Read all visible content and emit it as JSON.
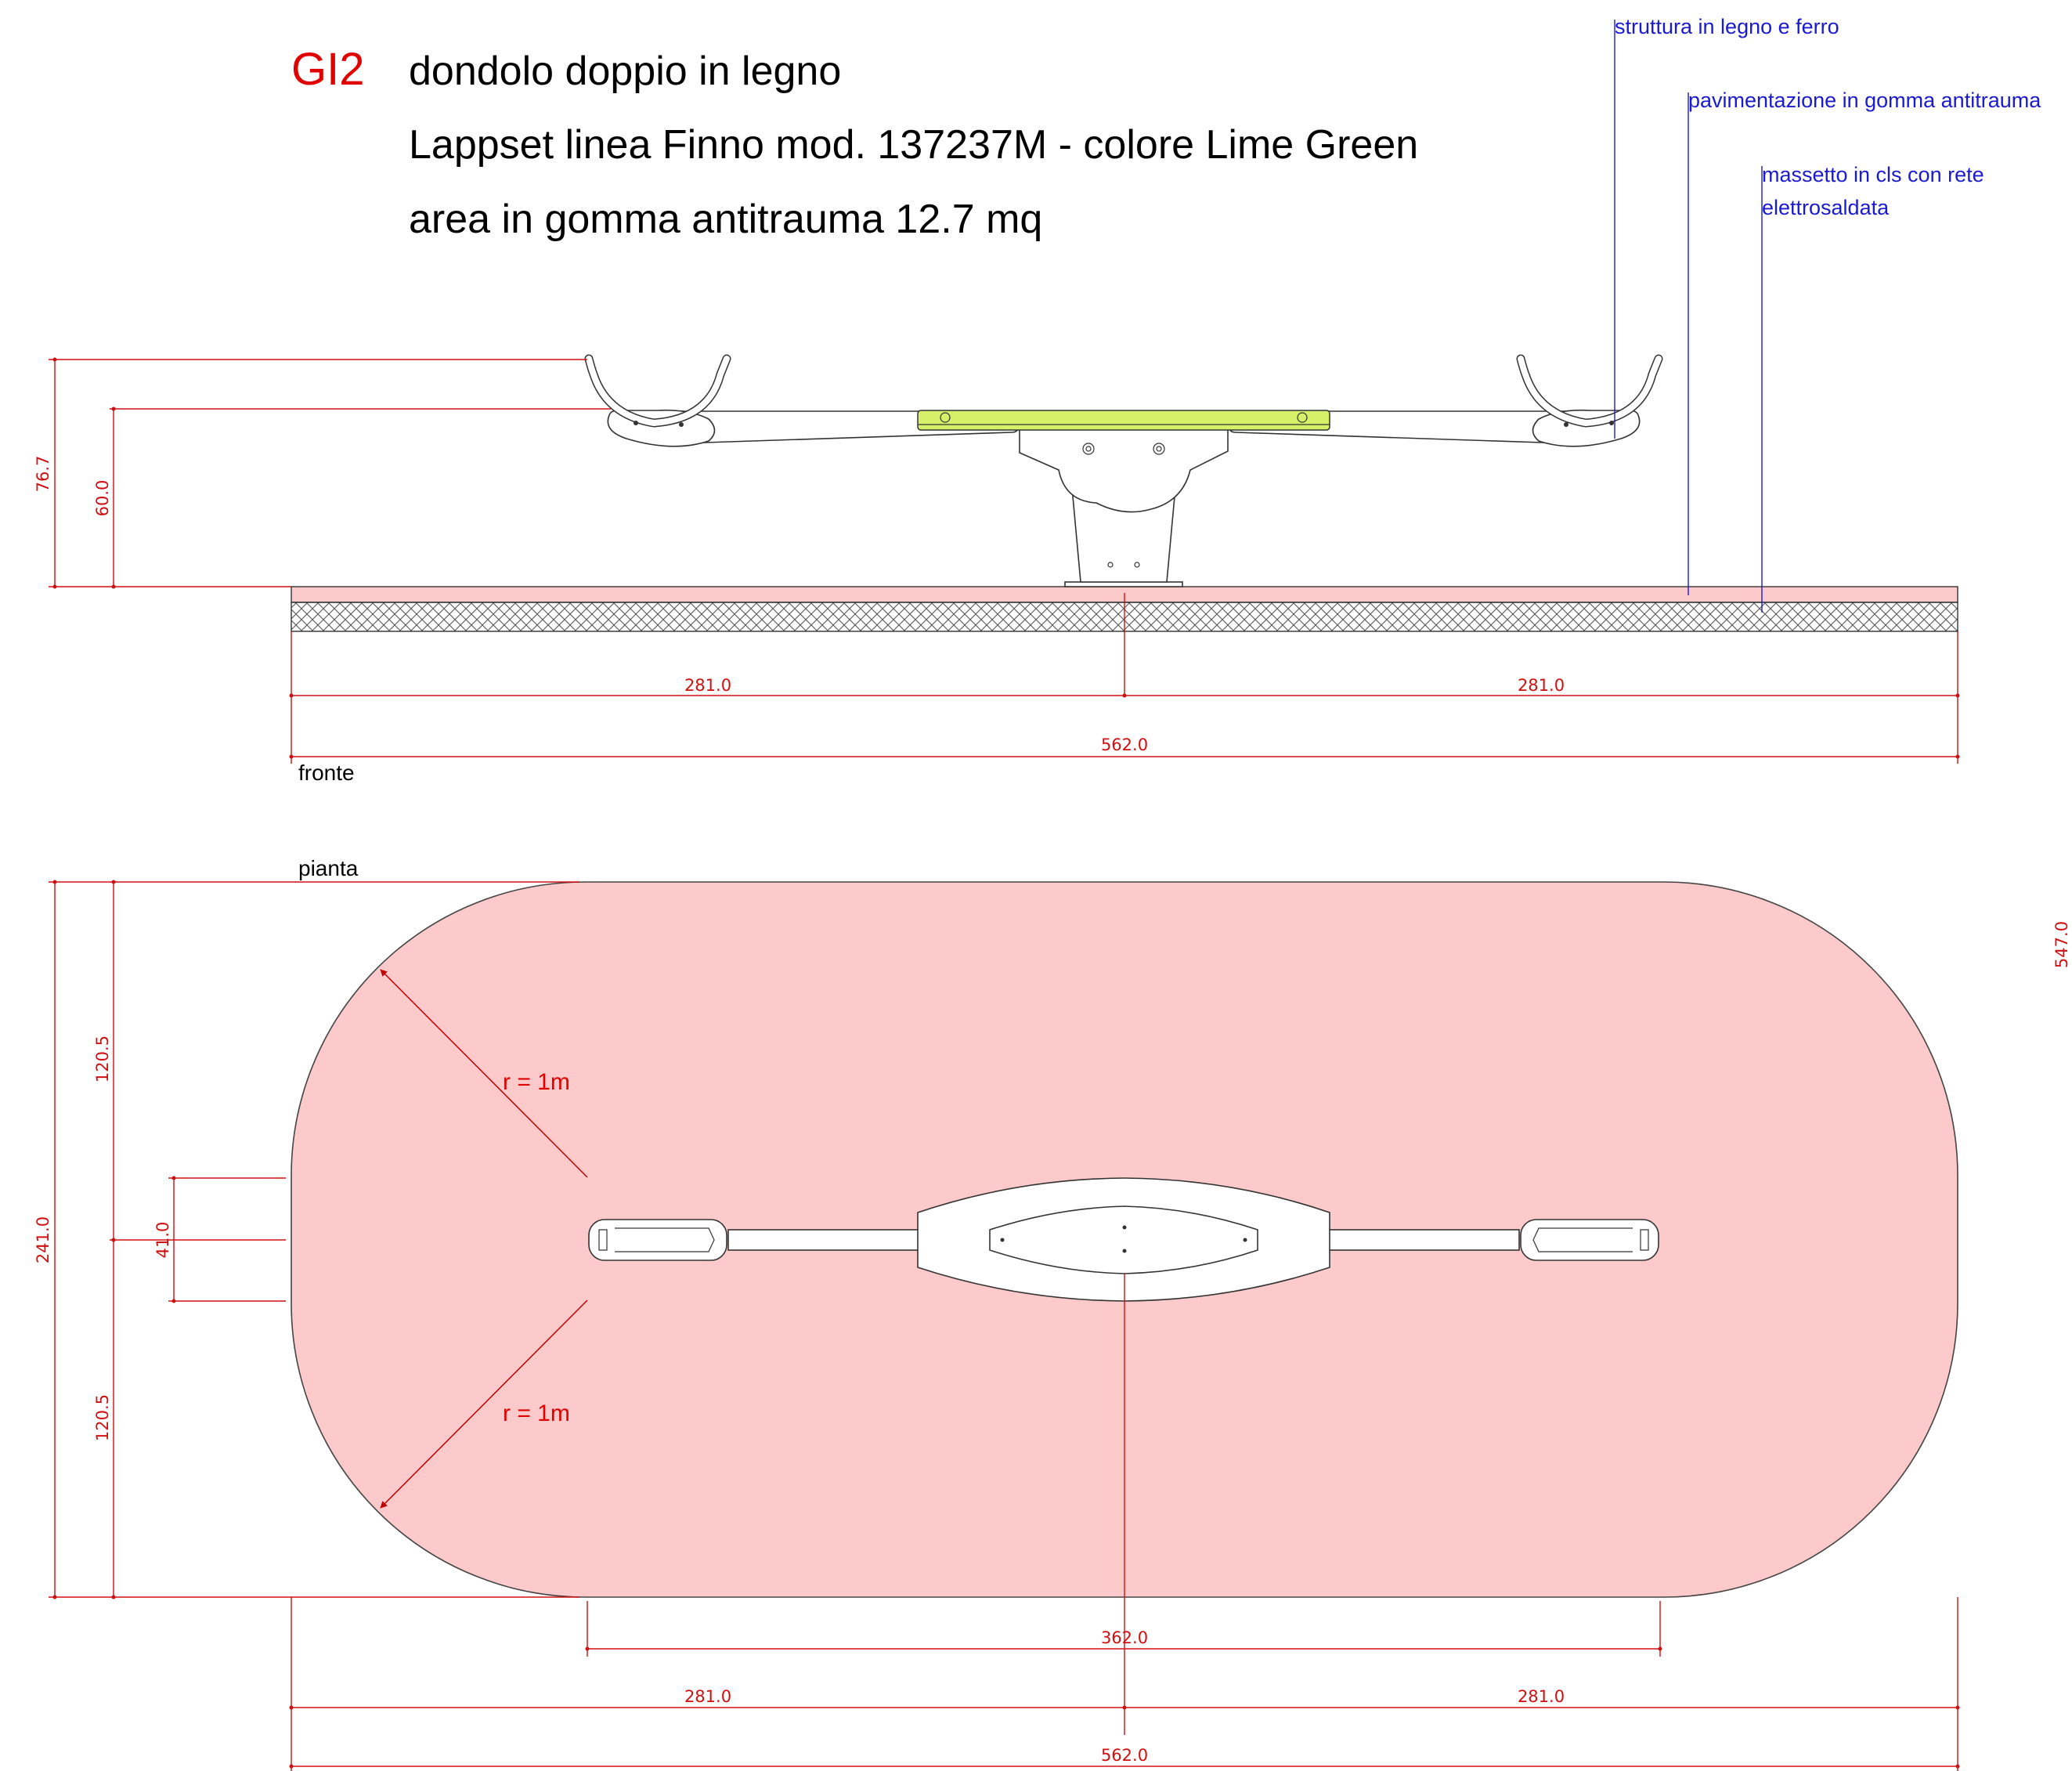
{
  "header": {
    "code": "GI2",
    "line1": "dondolo doppio in legno",
    "line2": "Lappset linea Finno  mod. 137237M - colore Lime Green",
    "line3": "area in gomma antitrauma 12.7 mq"
  },
  "annotations": {
    "structure": "struttura in legno e ferro",
    "flooring": "pavimentazione in gomma antitrauma",
    "screed_line1": "massetto in cls con rete",
    "screed_line2": "elettrosaldata"
  },
  "views": {
    "front": "fronte",
    "plan": "pianta"
  },
  "front_dimensions": {
    "height_total": "76.7",
    "seat_height": "60.0",
    "left_half": "281.0",
    "right_half": "281.0",
    "total_width": "562.0"
  },
  "plan_dimensions": {
    "side_depth": "547.0",
    "depth_total": "241.0",
    "upper_half": "120.5",
    "lower_half": "120.5",
    "beam_width": "41.0",
    "radius_upper": "r = 1m",
    "radius_lower": "r = 1m",
    "seesaw_length": "362.0",
    "left_half": "281.0",
    "right_half": "281.0",
    "total_width": "562.0"
  },
  "colors": {
    "code": "#e00000",
    "annotation": "#1a1ad0",
    "dimension": "#d01010",
    "safety_area": "#fccaca",
    "seat_board": "#d6f06a"
  }
}
